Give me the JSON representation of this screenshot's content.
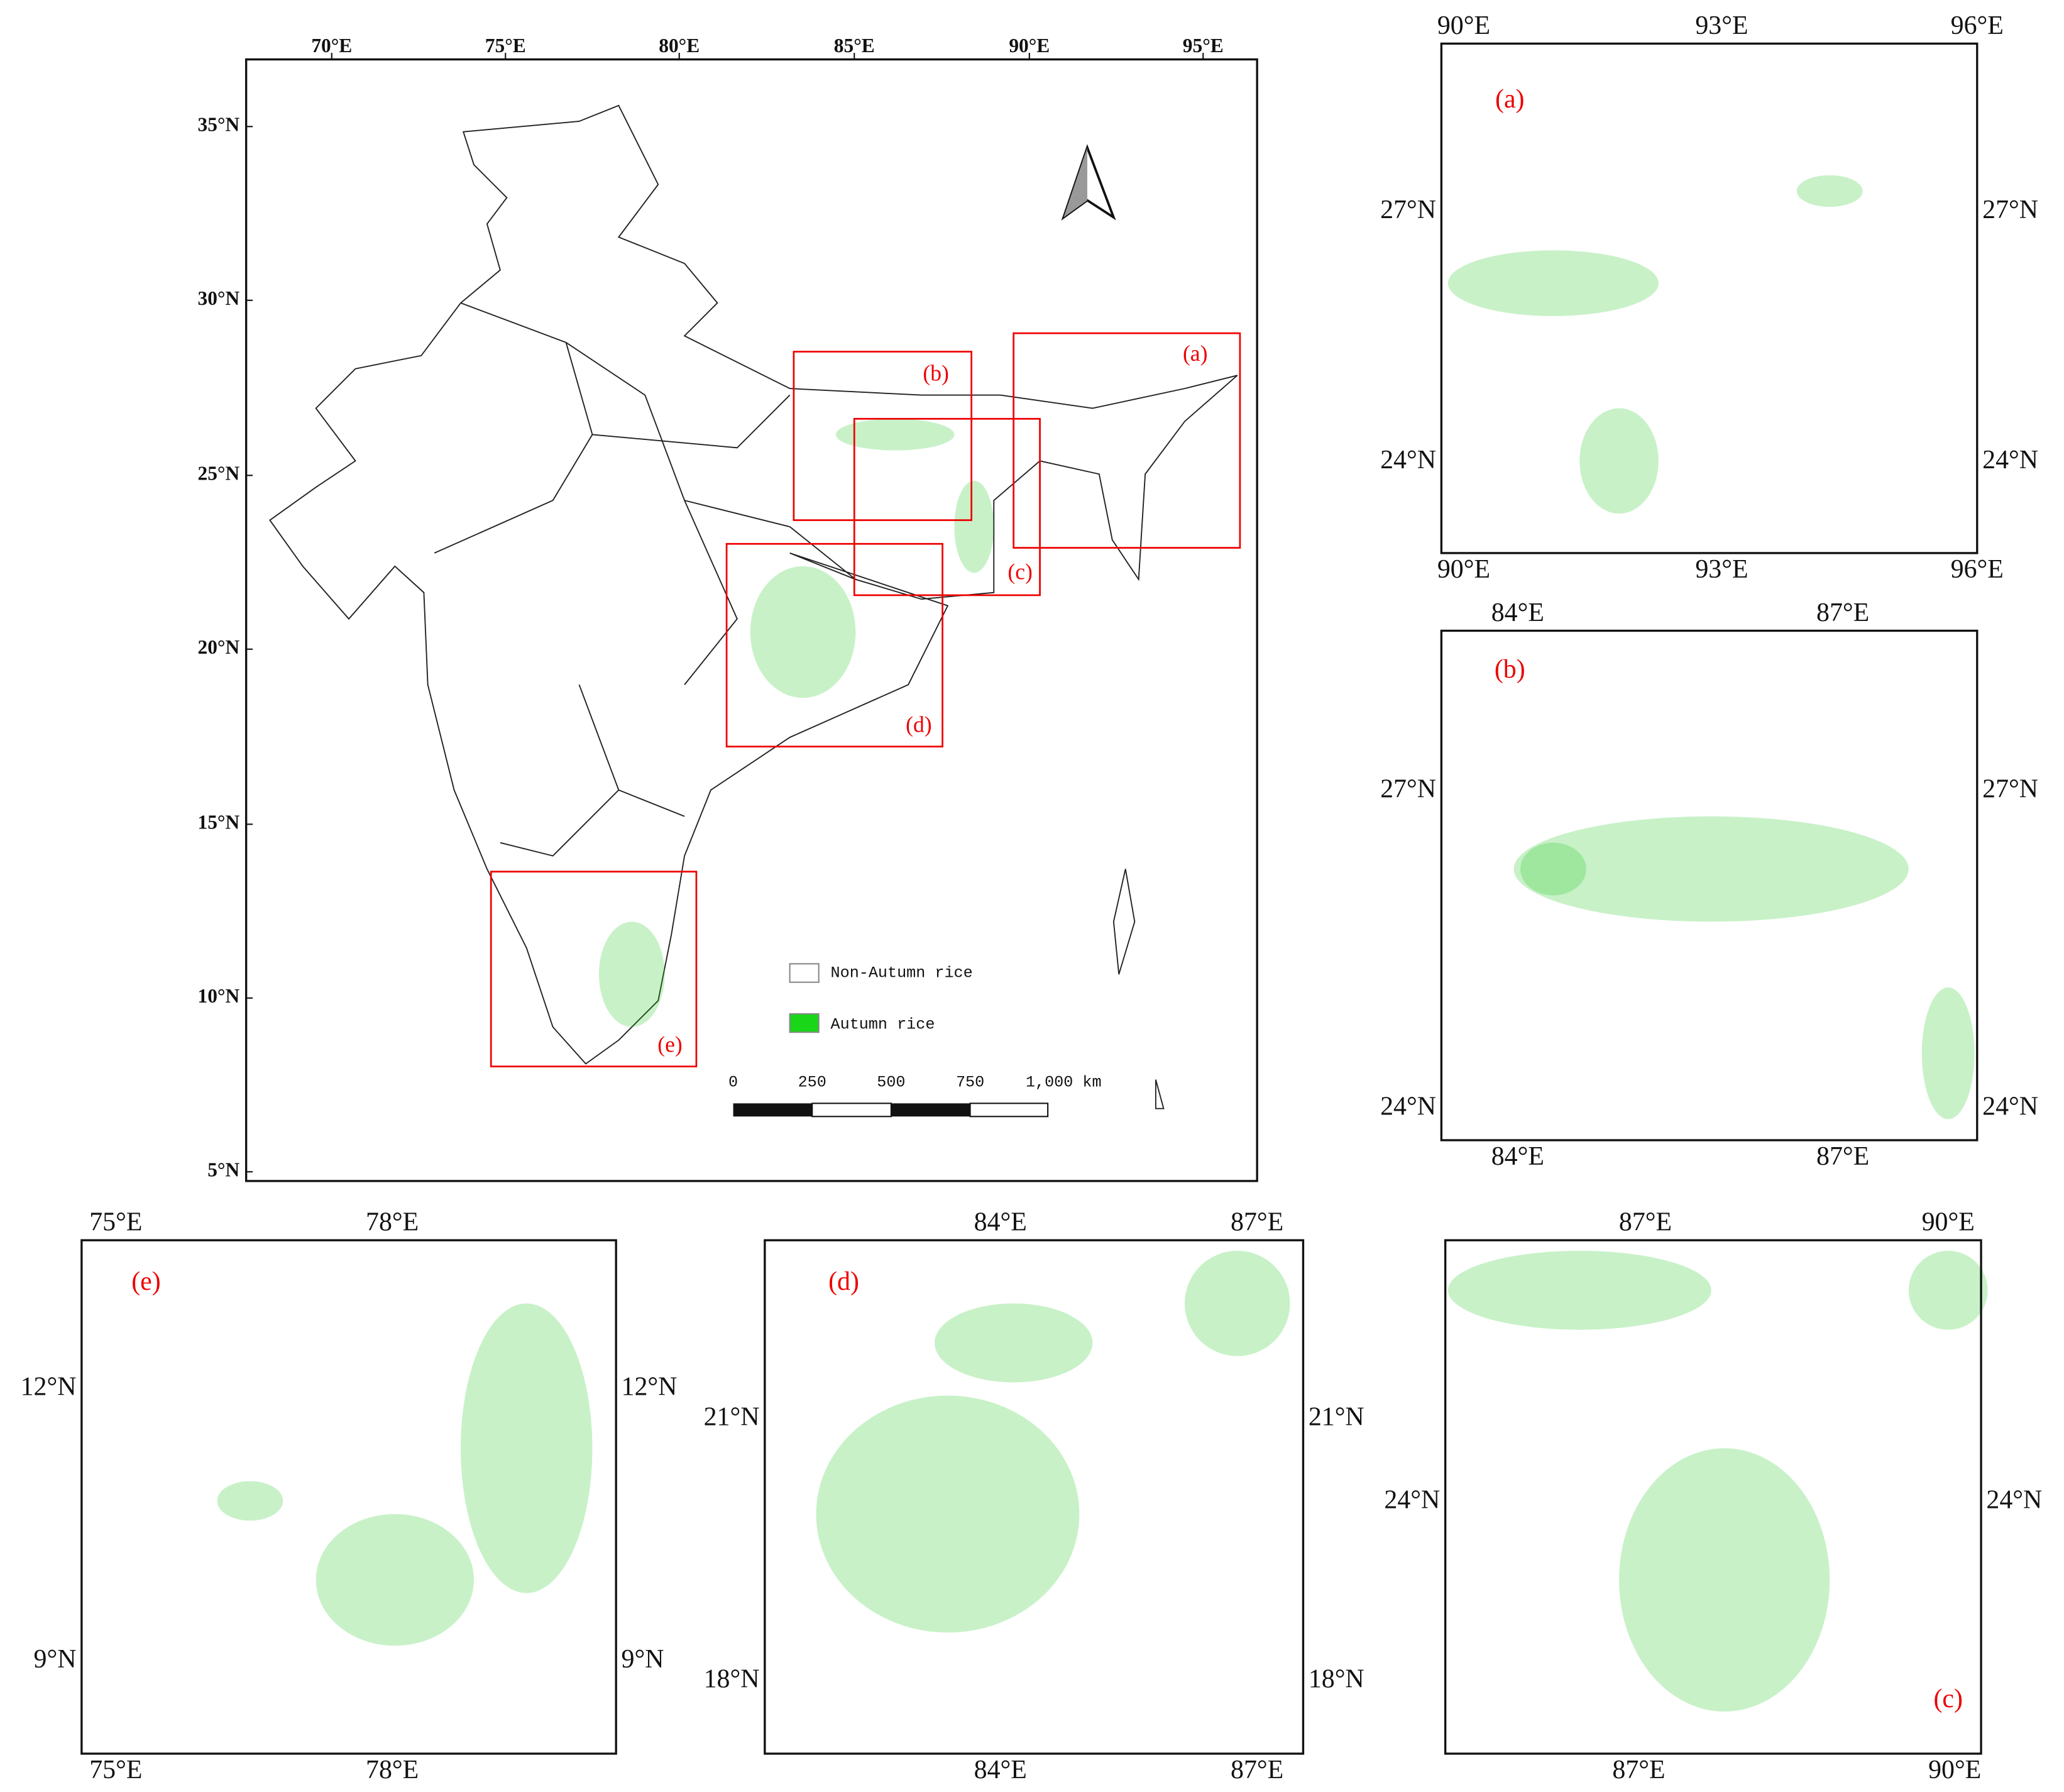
{
  "main_map": {
    "lon_labels": [
      "70°E",
      "75°E",
      "80°E",
      "85°E",
      "90°E",
      "95°E"
    ],
    "lat_labels": [
      "35°N",
      "30°N",
      "25°N",
      "20°N",
      "15°N",
      "10°N",
      "5°N"
    ],
    "box_labels": [
      "(a)",
      "(b)",
      "(c)",
      "(d)",
      "(e)"
    ],
    "legend": [
      "Non-Autumn rice",
      "Autumn rice"
    ],
    "scale_bar": [
      "0",
      "250",
      "500",
      "750",
      "1,000 km"
    ]
  },
  "panels": [
    {
      "label": "(a)",
      "top": [
        "90°E",
        "93°E",
        "96°E"
      ],
      "bottom": [
        "90°E",
        "93°E",
        "96°E"
      ],
      "left": [
        "27°N",
        "24°N"
      ],
      "right": [
        "27°N",
        "24°N"
      ]
    },
    {
      "label": "(b)",
      "top": [
        "84°E",
        "87°E"
      ],
      "bottom": [
        "84°E",
        "87°E"
      ],
      "left": [
        "27°N",
        "24°N"
      ],
      "right": [
        "27°N",
        "24°N"
      ]
    },
    {
      "label": "(e)",
      "top": [
        "75°E",
        "78°E"
      ],
      "bottom": [
        "75°E",
        "78°E"
      ],
      "left": [
        "12°N",
        "9°N"
      ],
      "right": [
        "12°N",
        "9°N"
      ]
    },
    {
      "label": "(d)",
      "top": [
        "84°E",
        "87°E"
      ],
      "bottom": [
        "84°E",
        "87°E"
      ],
      "left": [
        "21°N",
        "18°N"
      ],
      "right": [
        "21°N",
        "18°N"
      ]
    },
    {
      "label": "(c)",
      "top": [
        "87°E",
        "90°E"
      ],
      "bottom": [
        "87°E",
        "90°E"
      ],
      "left": [
        "24°N"
      ],
      "right": [
        "24°N"
      ]
    }
  ]
}
